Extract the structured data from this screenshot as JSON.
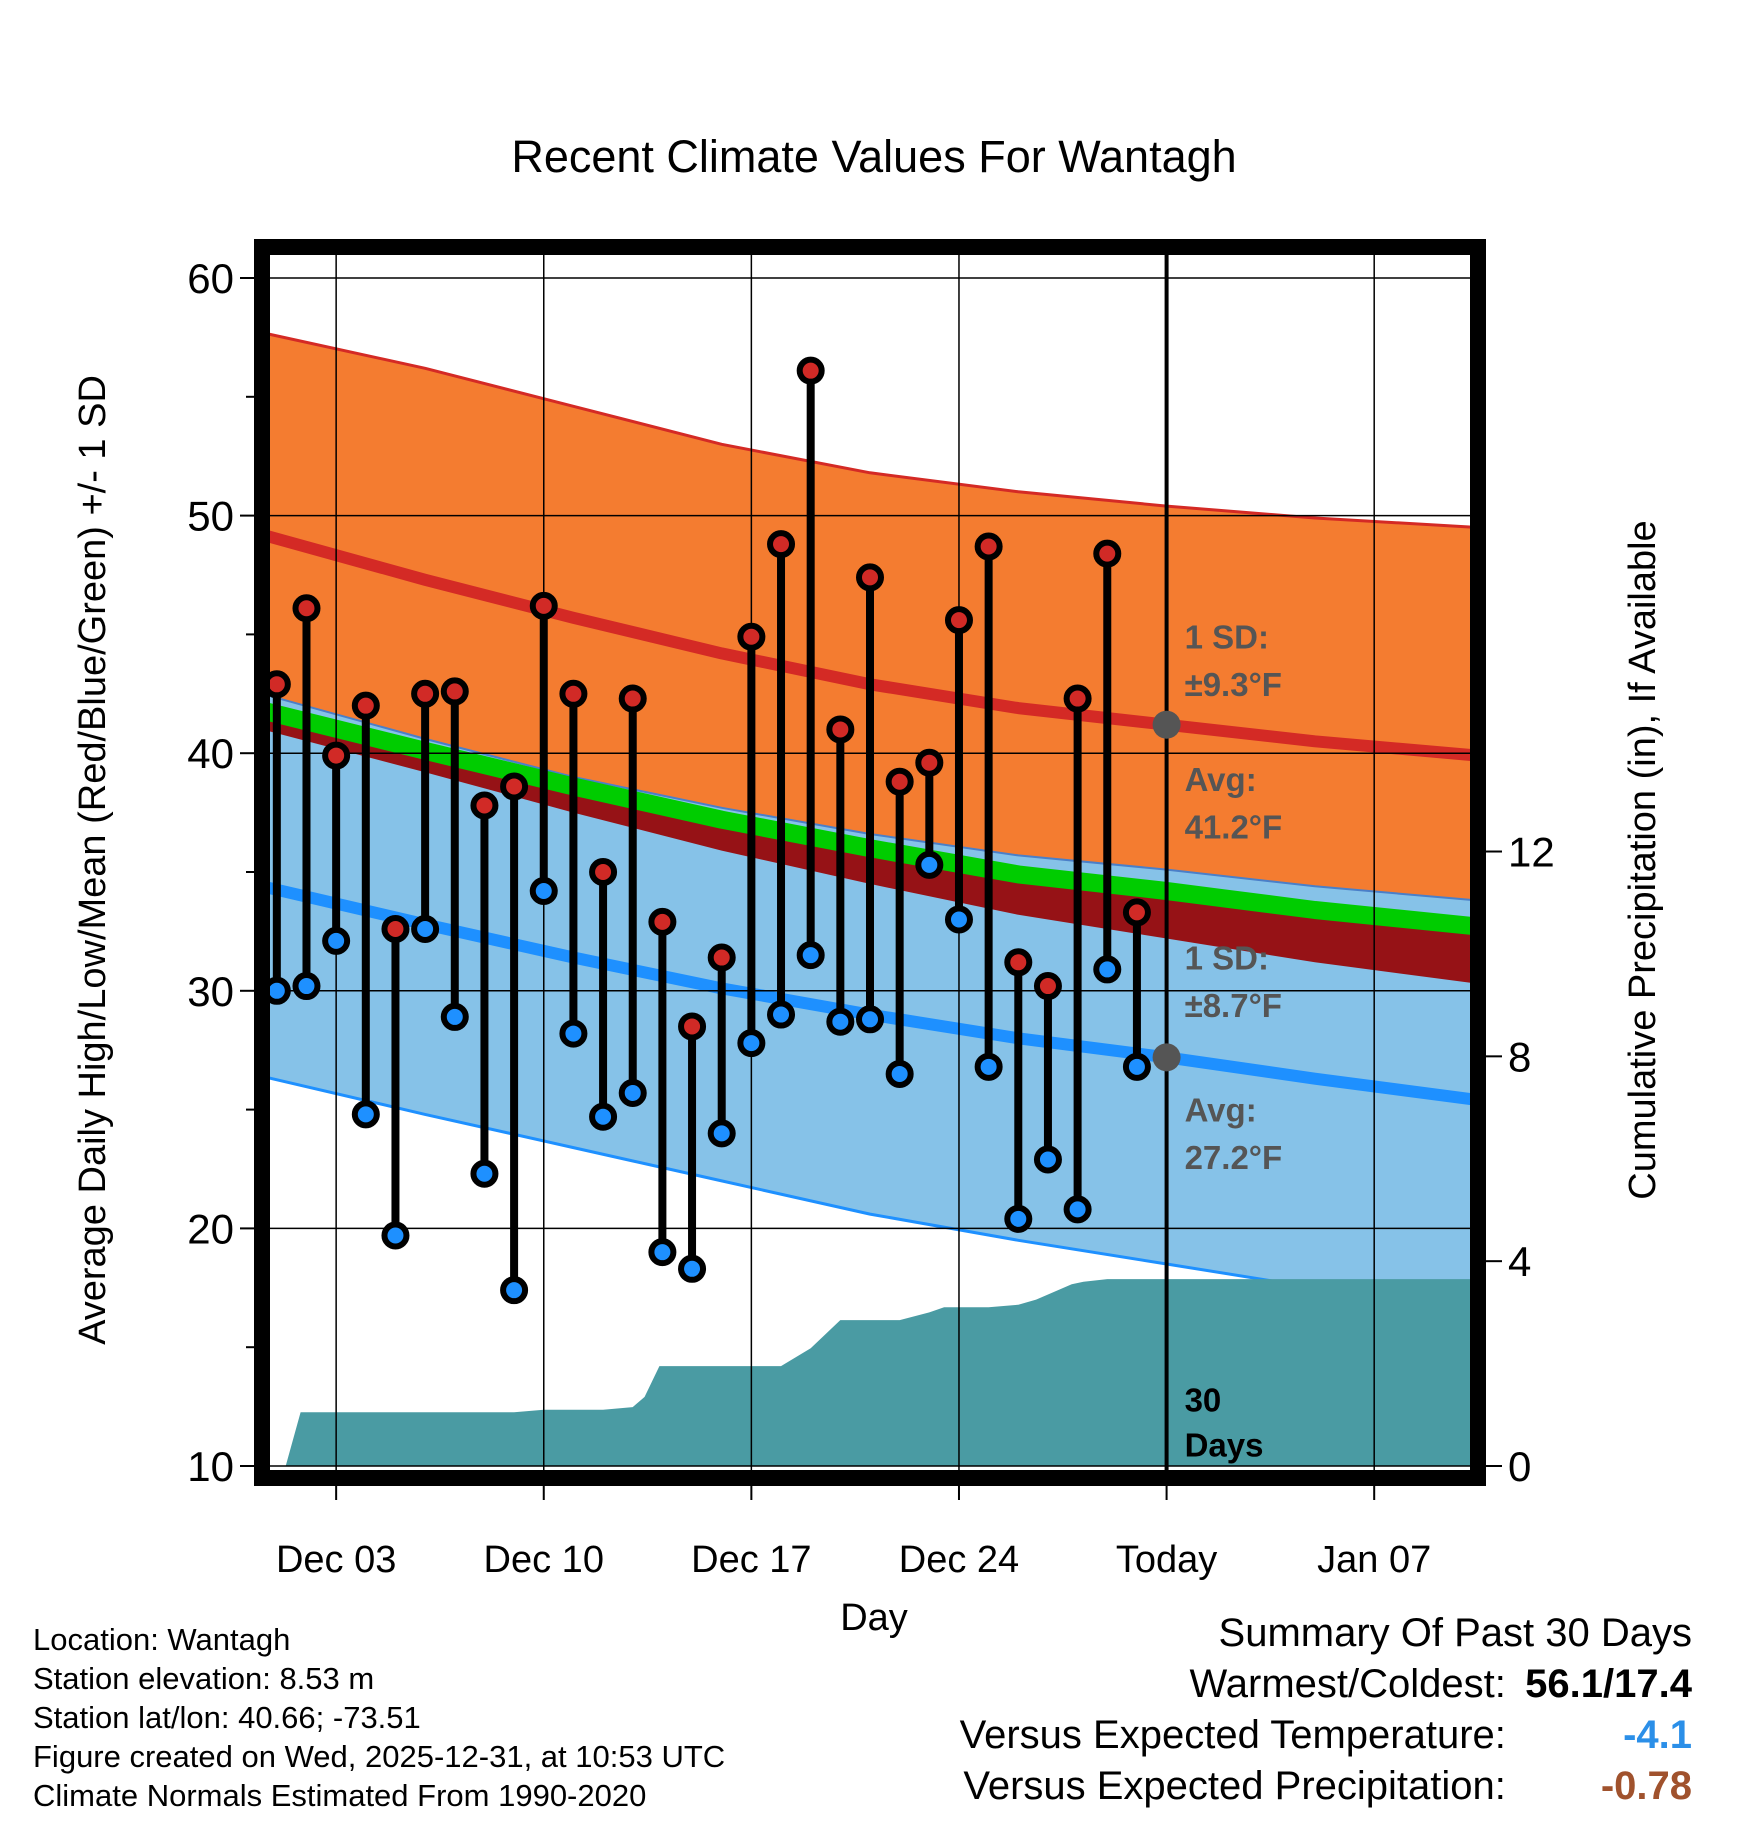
{
  "figure": {
    "title": "Recent Climate Values For Wantagh"
  },
  "chart_data": {
    "type": "climate-range",
    "title": "Recent Climate Values For Wantagh",
    "xlabel": "Day",
    "ylabel_left": "Average Daily High/Low/Mean (Red/Blue/Green) +/- 1 SD",
    "ylabel_right": "Cumulative Precipitation (in), If Available",
    "ylim_left": [
      10,
      60
    ],
    "ylim_right": [
      0,
      23.2
    ],
    "yticks_left": [
      10,
      20,
      30,
      40,
      50,
      60
    ],
    "yticks_right": [
      0,
      4,
      8,
      12
    ],
    "xlim_days": [
      -0.5,
      40.5
    ],
    "xticks": [
      {
        "day": 2,
        "label": "Dec 03"
      },
      {
        "day": 9,
        "label": "Dec 10"
      },
      {
        "day": 16,
        "label": "Dec 17"
      },
      {
        "day": 23,
        "label": "Dec 24"
      },
      {
        "day": 30,
        "label": "Today"
      },
      {
        "day": 37,
        "label": "Jan 07"
      }
    ],
    "today_day": 30,
    "normals": {
      "days": [
        -0.5,
        5,
        10,
        15,
        20,
        25,
        30,
        35,
        40.5
      ],
      "high_avg": [
        49.2,
        47.3,
        45.7,
        44.2,
        42.9,
        41.9,
        41.2,
        40.5,
        39.9
      ],
      "high_upper": [
        57.7,
        56.2,
        54.6,
        53.0,
        51.8,
        51.0,
        50.4,
        49.9,
        49.5
      ],
      "low_avg": [
        34.4,
        32.8,
        31.4,
        30.1,
        29.0,
        28.0,
        27.2,
        26.3,
        25.4
      ],
      "low_lower": [
        26.4,
        24.8,
        23.4,
        22.0,
        20.6,
        19.5,
        18.5,
        17.5,
        16.8
      ],
      "mean_avg": [
        41.8,
        40.1,
        38.6,
        37.2,
        36.0,
        34.9,
        34.2,
        33.4,
        32.7
      ],
      "mean_lower": [
        41.0,
        39.2,
        37.5,
        35.9,
        34.5,
        33.2,
        32.2,
        31.2,
        30.3
      ],
      "upper_band_bottom": [
        42.5,
        40.6,
        39.0,
        37.7,
        36.6,
        35.7,
        35.1,
        34.4,
        33.8
      ]
    },
    "observations": {
      "days": [
        0,
        1,
        2,
        3,
        4,
        5,
        6,
        7,
        8,
        9,
        10,
        11,
        12,
        13,
        14,
        15,
        16,
        17,
        18,
        19,
        20,
        21,
        22,
        23,
        24,
        25,
        26,
        27,
        28,
        29
      ],
      "high": [
        42.9,
        46.1,
        39.9,
        42.0,
        32.6,
        42.5,
        42.6,
        37.8,
        38.6,
        46.2,
        42.5,
        35.0,
        42.3,
        32.9,
        28.5,
        31.4,
        44.9,
        48.8,
        56.1,
        41.0,
        47.4,
        38.8,
        39.6,
        45.6,
        48.7,
        31.2,
        30.2,
        42.3,
        48.4,
        33.3
      ],
      "low": [
        30.0,
        30.2,
        32.1,
        24.8,
        19.7,
        32.6,
        28.9,
        22.3,
        17.4,
        34.2,
        28.2,
        24.7,
        25.7,
        19.0,
        18.3,
        24.0,
        27.8,
        29.0,
        31.5,
        28.7,
        28.8,
        26.5,
        35.3,
        33.0,
        26.8,
        20.4,
        22.9,
        20.8,
        30.9,
        26.8
      ]
    },
    "precipitation_cumulative": {
      "days": [
        -0.2,
        0.3,
        0.8,
        8.0,
        9.0,
        11.0,
        12.0,
        12.4,
        12.9,
        17.0,
        18.0,
        19.0,
        21.0,
        22.0,
        22.5,
        24.0,
        25.0,
        25.6,
        26.0,
        26.8,
        27.2,
        28.0,
        30.0,
        40.5
      ],
      "values": [
        0.0,
        0.0,
        1.05,
        1.05,
        1.1,
        1.1,
        1.15,
        1.35,
        1.95,
        1.95,
        2.3,
        2.85,
        2.85,
        3.0,
        3.1,
        3.1,
        3.15,
        3.25,
        3.35,
        3.55,
        3.6,
        3.65,
        3.65,
        3.65
      ]
    },
    "annotations": {
      "high_sd_line1": "1 SD:",
      "high_sd_line2": "±9.3°F",
      "high_avg_line1": "Avg:",
      "high_avg_line2": "41.2°F",
      "low_sd_line1": "1 SD:",
      "low_sd_line2": "±8.7°F",
      "low_avg_line1": "Avg:",
      "low_avg_line2": "27.2°F",
      "days_line1": "30",
      "days_line2": "Days"
    },
    "colors": {
      "high_band": "#f47c30",
      "high_line": "#d42a25",
      "low_band": "#86c2e8",
      "low_line": "#1e90ff",
      "mean_band": "#961216",
      "mean_line": "#00cc00",
      "precip": "#4a9ba3",
      "annotation": "#555555",
      "marker_high": "#d12a26",
      "marker_low": "#1e90ff"
    }
  },
  "info": {
    "location": "Location: Wantagh",
    "elevation": "Station elevation: 8.53 m",
    "latlon": "Station lat/lon: 40.66; -73.51",
    "created": "Figure created on Wed, 2025-12-31, at 10:53 UTC",
    "normals": "Climate Normals Estimated From 1990-2020"
  },
  "summary": {
    "title": "Summary Of Past 30 Days",
    "warmest_label": "Warmest/Coldest:",
    "warmest_value": "56.1/17.4",
    "temp_label": "Versus Expected Temperature:",
    "temp_value": "-4.1",
    "temp_color": "#2b8fe8",
    "precip_label": "Versus Expected Precipitation:",
    "precip_value": "-0.78",
    "precip_color": "#a0522d"
  }
}
